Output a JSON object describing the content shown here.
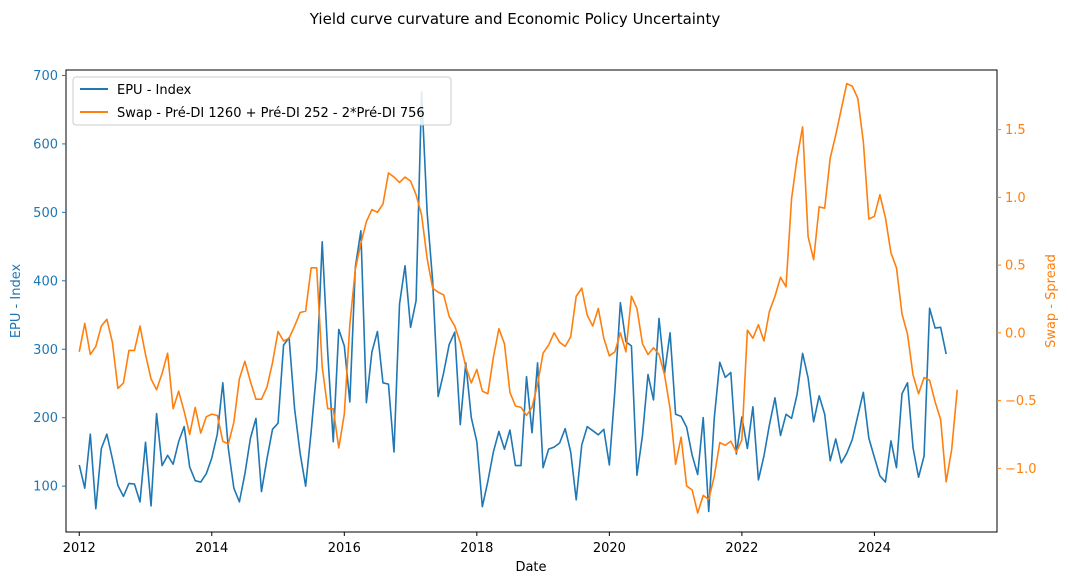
{
  "chart_data": {
    "type": "line",
    "title": "Yield curve curvature and Economic Policy Uncertainty",
    "xlabel": "Date",
    "ylabel_left": "EPU - Index",
    "ylabel_right": "Swap - Spread",
    "xlim": [
      2011.8,
      2025.85
    ],
    "ylim_left": [
      33,
      708
    ],
    "ylim_right": [
      -1.47,
      1.94
    ],
    "x_ticks": [
      2012,
      2014,
      2016,
      2018,
      2020,
      2022,
      2024
    ],
    "x_tick_labels": [
      "2012",
      "2014",
      "2016",
      "2018",
      "2020",
      "2022",
      "2024"
    ],
    "y_left_ticks": [
      100,
      200,
      300,
      400,
      500,
      600,
      700
    ],
    "y_left_tick_labels": [
      "100",
      "200",
      "300",
      "400",
      "500",
      "600",
      "700"
    ],
    "y_right_ticks": [
      -1.0,
      -0.5,
      0.0,
      0.5,
      1.0,
      1.5
    ],
    "y_right_tick_labels": [
      "−1.0",
      "−0.5",
      "0.0",
      "0.5",
      "1.0",
      "1.5"
    ],
    "grid": false,
    "legend_position": "top-left",
    "colors": {
      "epu": "#1f77b4",
      "swap": "#ff7f0e",
      "axis": "#000000"
    },
    "x_start_year": 2012,
    "x_step_years": 0.08333,
    "series": [
      {
        "name": "EPU - Index",
        "axis": "left",
        "color": "#1f77b4",
        "values": [
          131,
          97,
          176,
          67,
          155,
          176,
          140,
          101,
          85,
          104,
          103,
          77,
          164,
          71,
          206,
          130,
          145,
          132,
          165,
          187,
          128,
          108,
          106,
          118,
          141,
          176,
          251,
          155,
          97,
          77,
          118,
          170,
          199,
          92,
          140,
          183,
          192,
          306,
          317,
          213,
          148,
          100,
          180,
          270,
          457,
          295,
          165,
          329,
          305,
          223,
          420,
          473,
          222,
          296,
          326,
          251,
          249,
          150,
          366,
          422,
          332,
          371,
          676,
          500,
          400,
          231,
          266,
          307,
          325,
          190,
          280,
          200,
          165,
          70,
          107,
          150,
          180,
          154,
          182,
          130,
          130,
          260,
          178,
          280,
          127,
          154,
          157,
          163,
          184,
          150,
          80,
          160,
          187,
          181,
          175,
          183,
          131,
          239,
          368,
          311,
          305,
          116,
          174,
          263,
          226,
          345,
          265,
          324,
          205,
          202,
          186,
          145,
          117,
          200,
          63,
          199,
          281,
          259,
          266,
          147,
          201,
          155,
          216,
          109,
          144,
          190,
          229,
          174,
          205,
          199,
          234,
          294,
          258,
          194,
          232,
          205,
          137,
          169,
          134,
          148,
          168,
          203,
          237,
          170,
          142,
          115,
          106,
          166,
          127,
          235,
          251,
          156,
          113,
          144,
          360,
          331,
          332,
          293
        ]
      },
      {
        "name": "Swap - Pré-DI 1260 + Pré-DI 252 - 2*Pré-DI 756",
        "axis": "right",
        "color": "#ff7f0e",
        "values": [
          -0.14,
          0.07,
          -0.16,
          -0.1,
          0.05,
          0.1,
          -0.07,
          -0.41,
          -0.37,
          -0.13,
          -0.13,
          0.05,
          -0.16,
          -0.34,
          -0.42,
          -0.3,
          -0.15,
          -0.56,
          -0.43,
          -0.58,
          -0.75,
          -0.55,
          -0.74,
          -0.62,
          -0.6,
          -0.61,
          -0.8,
          -0.82,
          -0.66,
          -0.34,
          -0.21,
          -0.36,
          -0.49,
          -0.49,
          -0.4,
          -0.22,
          0.01,
          -0.06,
          -0.04,
          0.05,
          0.15,
          0.16,
          0.48,
          0.48,
          -0.25,
          -0.56,
          -0.56,
          -0.85,
          -0.6,
          0.06,
          0.47,
          0.66,
          0.82,
          0.91,
          0.89,
          0.95,
          1.18,
          1.15,
          1.11,
          1.15,
          1.12,
          1.02,
          0.87,
          0.55,
          0.33,
          0.3,
          0.28,
          0.12,
          0.05,
          -0.07,
          -0.25,
          -0.37,
          -0.27,
          -0.43,
          -0.45,
          -0.18,
          0.03,
          -0.08,
          -0.44,
          -0.54,
          -0.55,
          -0.61,
          -0.55,
          -0.38,
          -0.15,
          -0.09,
          0.0,
          -0.07,
          -0.1,
          -0.03,
          0.27,
          0.33,
          0.13,
          0.05,
          0.18,
          -0.04,
          -0.17,
          -0.14,
          0.0,
          -0.14,
          0.27,
          0.18,
          -0.08,
          -0.16,
          -0.11,
          -0.16,
          -0.31,
          -0.56,
          -0.97,
          -0.77,
          -1.13,
          -1.16,
          -1.33,
          -1.2,
          -1.23,
          -1.06,
          -0.81,
          -0.83,
          -0.8,
          -0.88,
          -0.79,
          0.02,
          -0.04,
          0.06,
          -0.06,
          0.16,
          0.27,
          0.41,
          0.34,
          0.99,
          1.29,
          1.52,
          0.71,
          0.54,
          0.93,
          0.92,
          1.29,
          1.46,
          1.65,
          1.84,
          1.82,
          1.73,
          1.41,
          0.84,
          0.86,
          1.02,
          0.85,
          0.59,
          0.48,
          0.14,
          -0.01,
          -0.31,
          -0.45,
          -0.33,
          -0.35,
          -0.51,
          -0.64,
          -1.1,
          -0.86,
          -0.42
        ]
      }
    ]
  }
}
